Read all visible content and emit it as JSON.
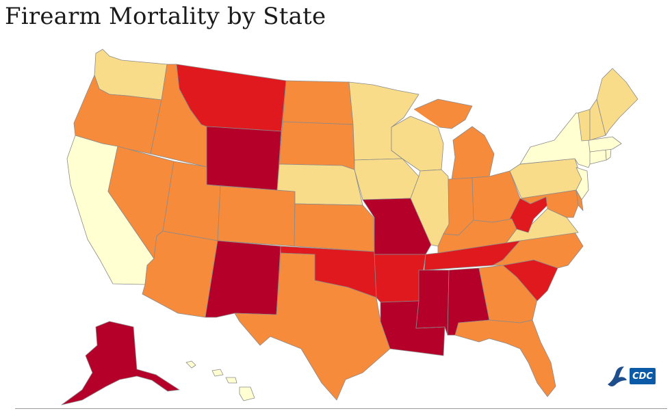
{
  "title": "Firearm Mortality by State",
  "colors": {
    "tier1": "#ffffd1",
    "tier2": "#f8dc8a",
    "tier3": "#f68b3c",
    "tier4": "#e0191f",
    "tier5": "#b5002a"
  },
  "states": [
    {
      "abbr": "WA",
      "tier": "tier2"
    },
    {
      "abbr": "OR",
      "tier": "tier3"
    },
    {
      "abbr": "CA",
      "tier": "tier1"
    },
    {
      "abbr": "ID",
      "tier": "tier3"
    },
    {
      "abbr": "NV",
      "tier": "tier3"
    },
    {
      "abbr": "MT",
      "tier": "tier4"
    },
    {
      "abbr": "WY",
      "tier": "tier5"
    },
    {
      "abbr": "UT",
      "tier": "tier3"
    },
    {
      "abbr": "AZ",
      "tier": "tier3"
    },
    {
      "abbr": "CO",
      "tier": "tier3"
    },
    {
      "abbr": "NM",
      "tier": "tier5"
    },
    {
      "abbr": "ND",
      "tier": "tier3"
    },
    {
      "abbr": "SD",
      "tier": "tier3"
    },
    {
      "abbr": "NE",
      "tier": "tier2"
    },
    {
      "abbr": "KS",
      "tier": "tier3"
    },
    {
      "abbr": "OK",
      "tier": "tier4"
    },
    {
      "abbr": "TX",
      "tier": "tier3"
    },
    {
      "abbr": "MN",
      "tier": "tier2"
    },
    {
      "abbr": "IA",
      "tier": "tier2"
    },
    {
      "abbr": "MO",
      "tier": "tier5"
    },
    {
      "abbr": "AR",
      "tier": "tier4"
    },
    {
      "abbr": "LA",
      "tier": "tier5"
    },
    {
      "abbr": "WI",
      "tier": "tier2"
    },
    {
      "abbr": "IL",
      "tier": "tier2"
    },
    {
      "abbr": "MI",
      "tier": "tier3"
    },
    {
      "abbr": "IN",
      "tier": "tier3"
    },
    {
      "abbr": "OH",
      "tier": "tier3"
    },
    {
      "abbr": "KY",
      "tier": "tier3"
    },
    {
      "abbr": "TN",
      "tier": "tier4"
    },
    {
      "abbr": "MS",
      "tier": "tier5"
    },
    {
      "abbr": "AL",
      "tier": "tier5"
    },
    {
      "abbr": "GA",
      "tier": "tier3"
    },
    {
      "abbr": "FL",
      "tier": "tier3"
    },
    {
      "abbr": "SC",
      "tier": "tier4"
    },
    {
      "abbr": "NC",
      "tier": "tier3"
    },
    {
      "abbr": "VA",
      "tier": "tier2"
    },
    {
      "abbr": "WV",
      "tier": "tier4"
    },
    {
      "abbr": "PA",
      "tier": "tier2"
    },
    {
      "abbr": "NY",
      "tier": "tier1"
    },
    {
      "abbr": "NJ",
      "tier": "tier1"
    },
    {
      "abbr": "MD",
      "tier": "tier3"
    },
    {
      "abbr": "DE",
      "tier": "tier3"
    },
    {
      "abbr": "CT",
      "tier": "tier1"
    },
    {
      "abbr": "RI",
      "tier": "tier1"
    },
    {
      "abbr": "MA",
      "tier": "tier1"
    },
    {
      "abbr": "VT",
      "tier": "tier2"
    },
    {
      "abbr": "NH",
      "tier": "tier2"
    },
    {
      "abbr": "ME",
      "tier": "tier2"
    },
    {
      "abbr": "AK",
      "tier": "tier5"
    },
    {
      "abbr": "HI",
      "tier": "tier1"
    }
  ],
  "logo": {
    "text": "CDC",
    "icon": "hhs-eagle-icon"
  }
}
